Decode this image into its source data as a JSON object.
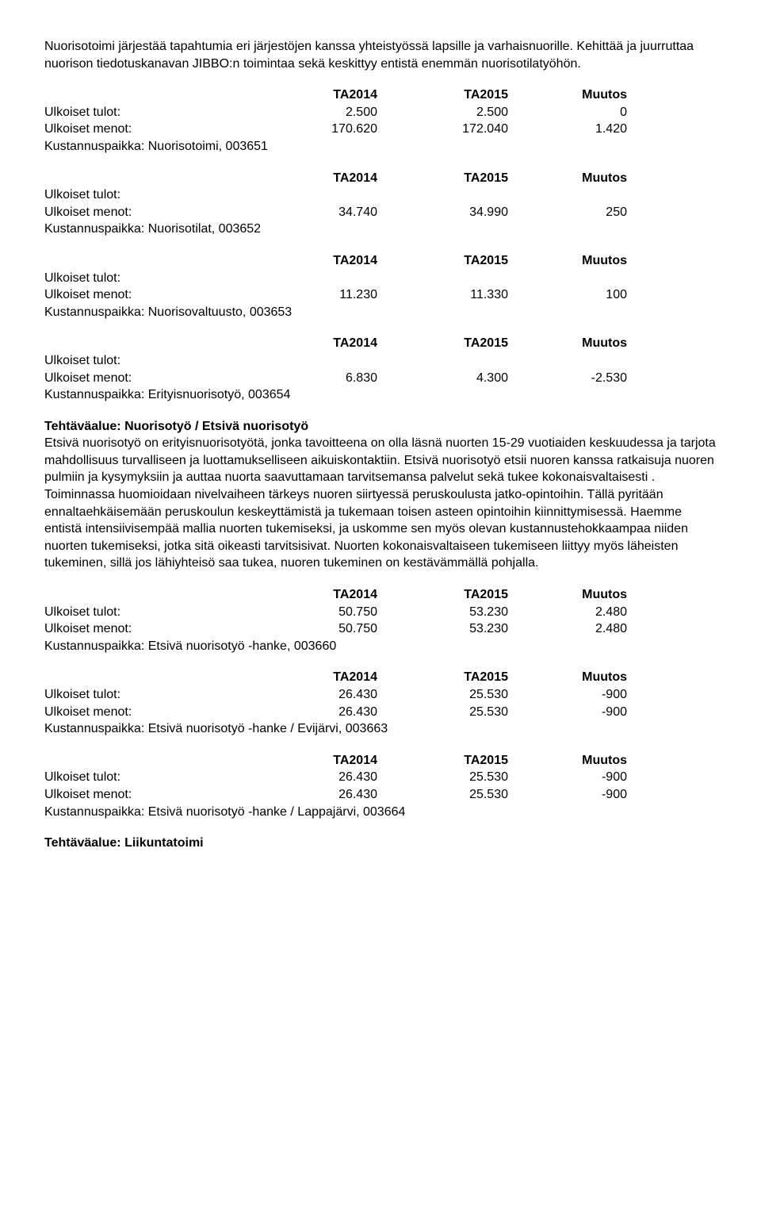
{
  "intro": "Nuorisotoimi järjestää tapahtumia eri järjestöjen kanssa yhteistyössä lapsille ja varhais­nuorille. Kehittää ja juurruttaa nuorison tiedotuskanavan JIBBO:n toimintaa sekä keskittyy entistä enemmän nuorisotilatyöhön.",
  "cols": {
    "c1": "TA2014",
    "c2": "TA2015",
    "c3": "Muutos"
  },
  "labels": {
    "tulot": "Ulkoiset tulot:",
    "menot": "Ulkoiset menot:"
  },
  "blocks": [
    {
      "tulot": {
        "c1": "2.500",
        "c2": "2.500",
        "c3": "0"
      },
      "menot": {
        "c1": "170.620",
        "c2": "172.040",
        "c3": "1.420"
      },
      "footer": "Kustannuspaikka: Nuorisotoimi, 003651"
    },
    {
      "tulot": {
        "c1": "",
        "c2": "",
        "c3": ""
      },
      "menot": {
        "c1": "34.740",
        "c2": "34.990",
        "c3": "250"
      },
      "footer": "Kustannuspaikka: Nuorisotilat, 003652"
    },
    {
      "tulot": {
        "c1": "",
        "c2": "",
        "c3": ""
      },
      "menot": {
        "c1": "11.230",
        "c2": "11.330",
        "c3": "100"
      },
      "footer": "Kustannuspaikka: Nuorisovaltuusto, 003653"
    },
    {
      "tulot": {
        "c1": "",
        "c2": "",
        "c3": ""
      },
      "menot": {
        "c1": "6.830",
        "c2": "4.300",
        "c3": "-2.530"
      },
      "footer": "Kustannuspaikka: Erityisnuorisotyö, 003654"
    }
  ],
  "section2": {
    "heading": "Tehtäväalue: Nuorisotyö / Etsivä nuorisotyö",
    "body": "Etsivä nuorisotyö on erityisnuorisotyötä, jonka tavoitteena on olla läsnä nuorten 15-29 vuotiaiden keskuudessa ja tarjota mahdollisuus turvalliseen ja luottamukselliseen aikuiskontaktiin. Etsivä nuorisotyö etsii nuoren kanssa ratkaisuja nuoren pulmiin ja kysymyksiin ja auttaa nuorta saavuttamaan tarvitsemansa palvelut sekä tukee kokonaisvaltaisesti . Toiminnassa huomioidaan nivelvaiheen tärkeys nuoren siirtyessä peruskoulusta jatko-opintoihin. Tällä pyritään ennaltaehkäisemään peruskoulun keskeyttämistä ja tukemaan toisen asteen opintoihin kiinnittymisessä. Haemme entistä intensiivisempää mallia nuorten tukemiseksi, ja uskomme sen myös olevan kustannustehokkaampaa niiden nuorten tukemiseksi, jotka sitä oikeasti tarvitsisivat. Nuorten kokonaisvaltaiseen tukemiseen liittyy myös läheisten tukeminen, sillä  jos lähiyhteisö saa tukea, nuoren tukeminen on kestävämmällä pohjalla."
  },
  "blocks2": [
    {
      "tulot": {
        "c1": "50.750",
        "c2": "53.230",
        "c3": "2.480"
      },
      "menot": {
        "c1": "50.750",
        "c2": "53.230",
        "c3": "2.480"
      },
      "footer": "Kustannuspaikka: Etsivä nuorisotyö -hanke, 003660"
    },
    {
      "tulot": {
        "c1": "26.430",
        "c2": "25.530",
        "c3": "-900"
      },
      "menot": {
        "c1": "26.430",
        "c2": "25.530",
        "c3": "-900"
      },
      "footer": "Kustannuspaikka: Etsivä nuorisotyö -hanke / Evijärvi, 003663"
    },
    {
      "tulot": {
        "c1": "26.430",
        "c2": "25.530",
        "c3": "-900"
      },
      "menot": {
        "c1": "26.430",
        "c2": "25.530",
        "c3": "-900"
      },
      "footer": "Kustannuspaikka: Etsivä nuorisotyö -hanke / Lappajärvi, 003664"
    }
  ],
  "final_heading": "Tehtäväalue: Liikuntatoimi"
}
